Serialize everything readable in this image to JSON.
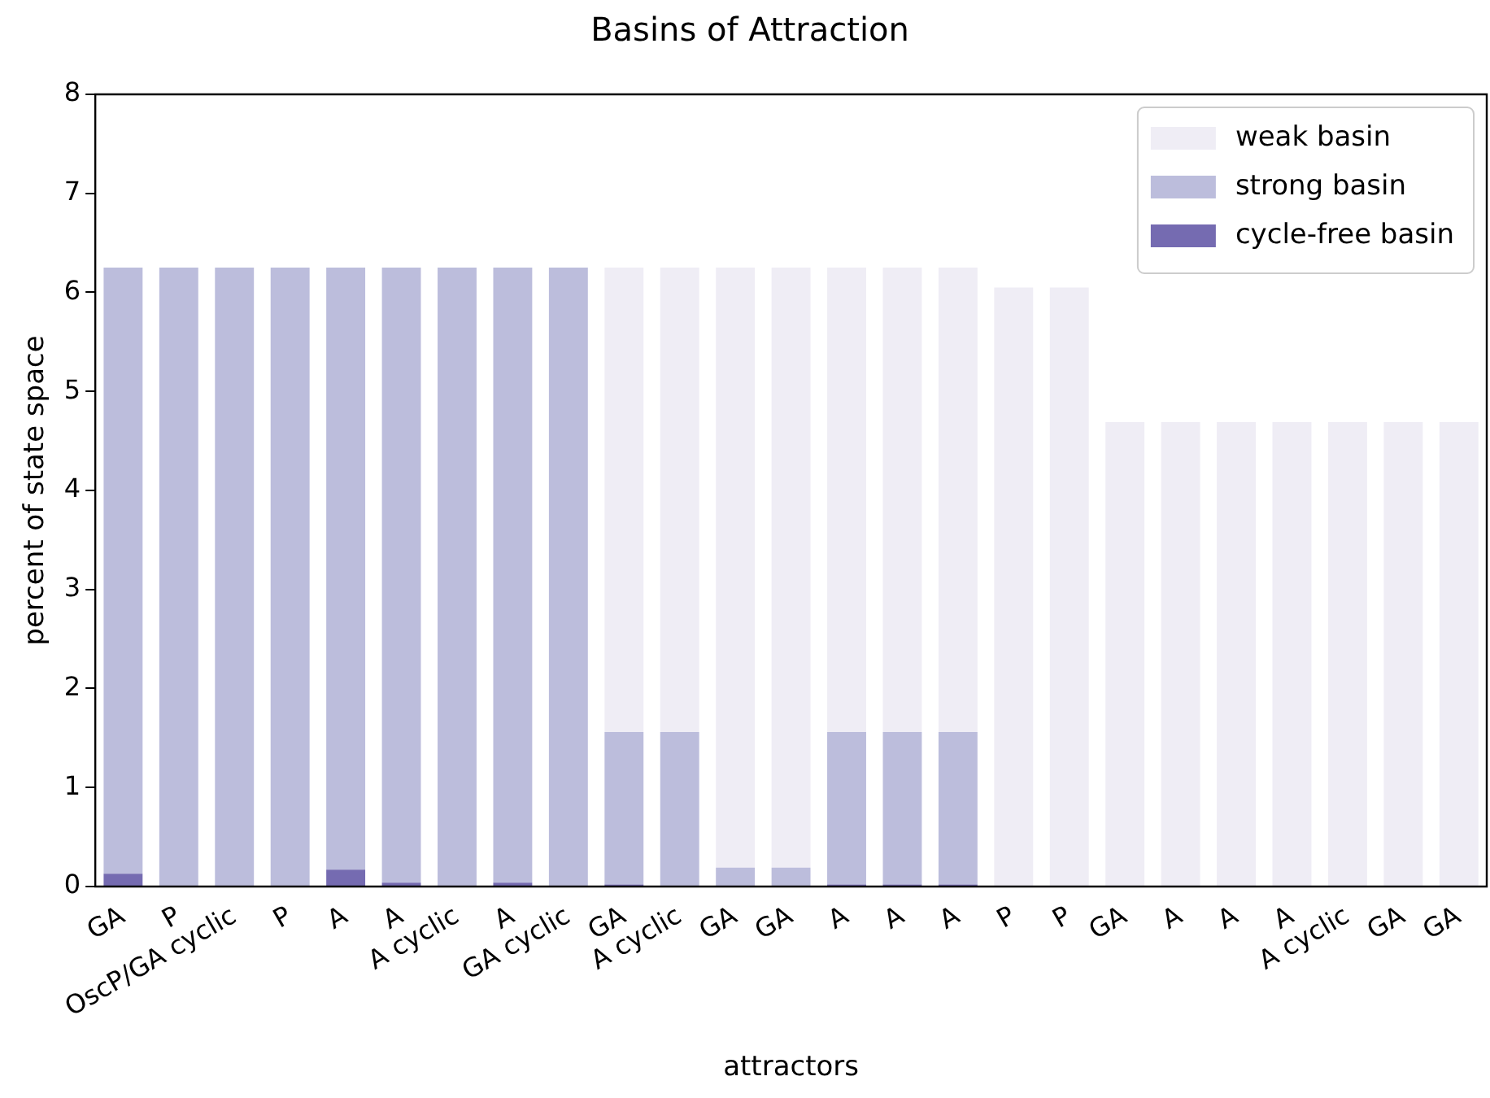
{
  "chart_data": {
    "type": "bar",
    "title": "Basins of Attraction",
    "xlabel": "attractors",
    "ylabel": "percent of state space",
    "categories": [
      "GA",
      "P",
      "OscP/GA cyclic",
      "P",
      "A",
      "A",
      "A cyclic",
      "A",
      "GA cyclic",
      "GA",
      "A cyclic",
      "GA",
      "GA",
      "A",
      "A",
      "A",
      "P",
      "P",
      "GA",
      "A",
      "A",
      "A",
      "A cyclic",
      "GA",
      "GA"
    ],
    "stacked": true,
    "series": [
      {
        "name": "cycle-free basin",
        "color": "#756bb1",
        "values": [
          0.13,
          0,
          0,
          0,
          0.17,
          0.04,
          null,
          0.04,
          null,
          0.02,
          null,
          0,
          0,
          0.02,
          0.02,
          0.02,
          0,
          0,
          0,
          0,
          0,
          0,
          0,
          0,
          0
        ]
      },
      {
        "name": "strong basin",
        "color": "#bcbddc",
        "values": [
          6.12,
          6.25,
          6.25,
          6.25,
          6.08,
          6.21,
          6.25,
          6.21,
          6.25,
          1.54,
          1.56,
          0.19,
          0.19,
          1.54,
          1.54,
          1.54,
          0,
          0,
          0,
          0,
          0,
          0,
          0,
          0,
          0
        ]
      },
      {
        "name": "weak basin",
        "color": "#efedf5",
        "values": [
          0,
          0,
          0,
          0,
          0,
          0,
          0,
          0,
          0,
          4.69,
          4.69,
          6.06,
          6.06,
          4.69,
          4.69,
          4.69,
          6.05,
          6.05,
          4.69,
          4.69,
          4.69,
          4.69,
          4.69,
          4.69,
          4.69
        ]
      }
    ],
    "ylim": [
      0,
      8
    ],
    "yticks": [
      0,
      1,
      2,
      3,
      4,
      5,
      6,
      7,
      8
    ],
    "grid": false,
    "legend": "top right"
  }
}
